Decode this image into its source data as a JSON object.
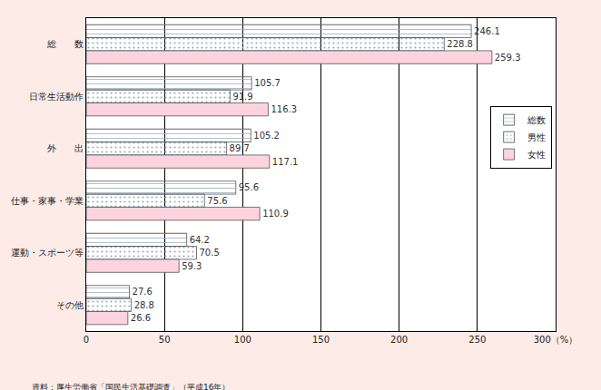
{
  "chart_data": {
    "type": "bar",
    "orientation": "horizontal",
    "categories": [
      "総　　数",
      "日常生活動作",
      "外　　出",
      "仕事・家事・学業",
      "運動・スポーツ等",
      "その他"
    ],
    "series": [
      {
        "name": "総数",
        "color": "#e8f0a8",
        "values": [
          246.1,
          105.7,
          105.2,
          95.6,
          64.2,
          27.6
        ]
      },
      {
        "name": "男性",
        "color": "#d6e6f7",
        "values": [
          228.8,
          91.9,
          89.7,
          75.6,
          70.5,
          28.8
        ]
      },
      {
        "name": "女性",
        "color": "#fcd3df",
        "values": [
          259.3,
          116.3,
          117.1,
          110.9,
          59.3,
          26.6
        ]
      }
    ],
    "xlim": [
      0,
      300
    ],
    "xticks": [
      0,
      50,
      100,
      150,
      200,
      250,
      {
        "value": 300,
        "label": "300（%）"
      }
    ],
    "grid": true,
    "legend": "right",
    "data_labels": true,
    "annotations": [
      "資料：厚生労働省「国民生活基礎調査」（平成16年）"
    ]
  }
}
